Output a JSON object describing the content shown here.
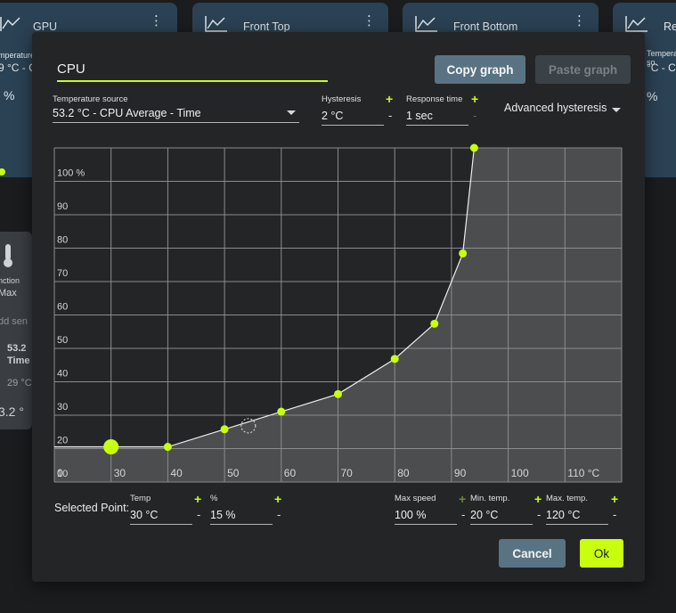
{
  "background": {
    "cards": [
      {
        "name": "GPU",
        "sub1": "mperature",
        "sub2": "9 °C - C",
        "sub3": "%"
      },
      {
        "name": "Front Top"
      },
      {
        "name": "Front Bottom"
      },
      {
        "name": "Re",
        "sub1": "Temperature so",
        "sub2": "°C - CP",
        "sub3": "%"
      }
    ],
    "sidecard": {
      "l1": "nction",
      "l2": "Max",
      "l3": "dd sen",
      "l4": "53.2",
      "l5": "Time",
      "l6": "29 °C",
      "l7": "3.2 °"
    }
  },
  "dialog": {
    "name_value": "CPU",
    "copy_graph": "Copy graph",
    "paste_graph": "Paste graph",
    "temperature_source_label": "Temperature source",
    "temperature_source_value": "53.2 °C - CPU Average - Time",
    "hysteresis_label": "Hysteresis",
    "hysteresis_value": "2 °C",
    "response_time_label": "Response time",
    "response_time_value": "1 sec",
    "advanced_hysteresis": "Advanced hysteresis",
    "plus": "+",
    "minus": "-",
    "selected_point_label": "Selected Point:",
    "temp_label": "Temp",
    "temp_value": "30 °C",
    "pct_label": "%",
    "pct_value": "15 %",
    "max_speed_label": "Max speed",
    "max_speed_value": "100 %",
    "min_temp_label": "Min. temp.",
    "min_temp_value": "20 °C",
    "max_temp_label": "Max. temp.",
    "max_temp_value": "120 °C",
    "cancel": "Cancel",
    "ok": "Ok"
  },
  "chart_data": {
    "type": "line",
    "x_ticks": [
      "0",
      "30",
      "40",
      "50",
      "60",
      "70",
      "80",
      "90",
      "100",
      "110 °C"
    ],
    "y_ticks": [
      "10",
      "20",
      "30",
      "40",
      "50",
      "60",
      "70",
      "80",
      "90",
      "100 %"
    ],
    "xlim": [
      20,
      120
    ],
    "ylim": [
      5,
      100
    ],
    "points": [
      {
        "x": 30,
        "y": 15
      },
      {
        "x": 40,
        "y": 15
      },
      {
        "x": 50,
        "y": 20
      },
      {
        "x": 60,
        "y": 25
      },
      {
        "x": 70,
        "y": 30
      },
      {
        "x": 80,
        "y": 40
      },
      {
        "x": 87,
        "y": 50
      },
      {
        "x": 92,
        "y": 70
      },
      {
        "x": 94,
        "y": 100
      }
    ],
    "selected_index": 0,
    "cursor": {
      "x": 54.2,
      "y": 21
    },
    "grid": true,
    "colors": {
      "accent": "#c8ff0f",
      "area": "#4b4d4f",
      "grid": "#8a8c8e",
      "plot_bg": "#232527"
    }
  }
}
